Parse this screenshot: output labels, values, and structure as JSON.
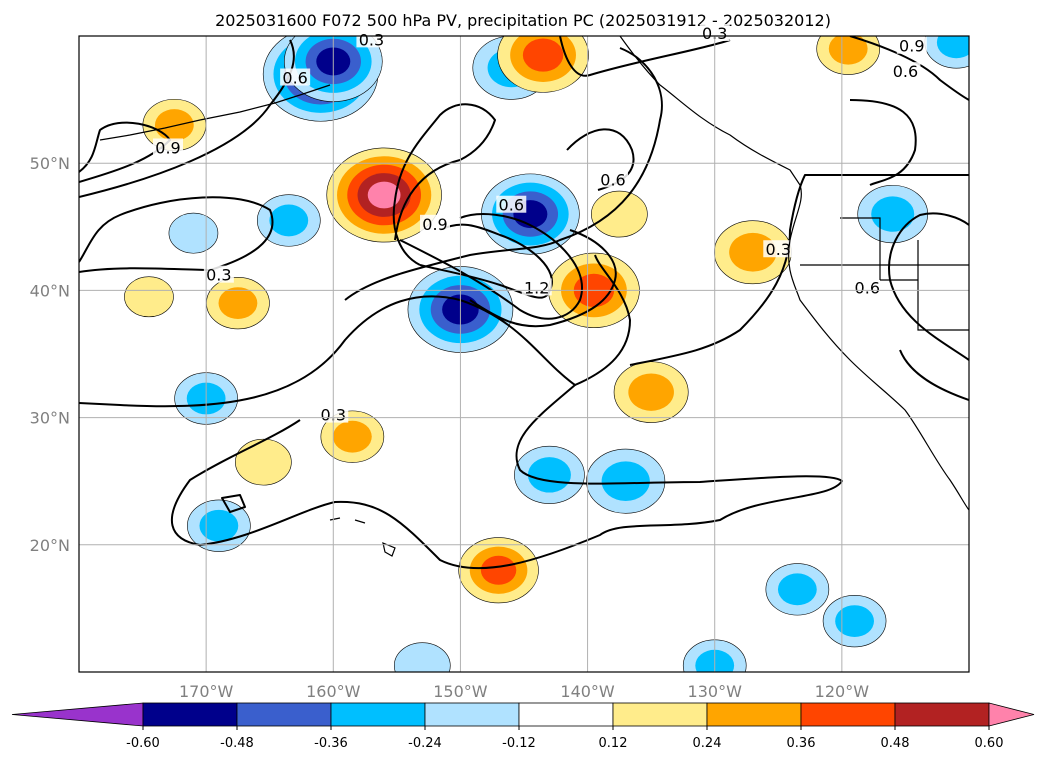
{
  "chart_data": {
    "type": "heatmap",
    "title": "2025031600 F072 500 hPa PV, precipitation PC (2025031912 - 2025032012)",
    "map": {
      "lon_range": [
        -180,
        -110
      ],
      "lat_range": [
        10,
        60
      ],
      "lat_ticks": [
        {
          "lat": 20,
          "label": "20°N"
        },
        {
          "lat": 30,
          "label": "30°N"
        },
        {
          "lat": 40,
          "label": "40°N"
        },
        {
          "lat": 50,
          "label": "50°N"
        }
      ],
      "lon_ticks": [
        {
          "lon": -170,
          "label": "170°W"
        },
        {
          "lon": -160,
          "label": "160°W"
        },
        {
          "lon": -150,
          "label": "150°W"
        },
        {
          "lon": -140,
          "label": "140°W"
        },
        {
          "lon": -130,
          "label": "130°W"
        },
        {
          "lon": -120,
          "label": "120°W"
        }
      ],
      "grid": true
    },
    "colorbar": {
      "levels": [
        "-0.60",
        "-0.48",
        "-0.36",
        "-0.24",
        "-0.12",
        "0.12",
        "0.24",
        "0.36",
        "0.48",
        "0.60"
      ],
      "colors": [
        "#9933cc",
        "#00008b",
        "#3a5fcd",
        "#00bfff",
        "#b0e2ff",
        "#ffffff",
        "#ffec8b",
        "#ffa500",
        "#ff4500",
        "#b22222",
        "#ff82ab"
      ],
      "extend": "both"
    },
    "filled_regions": [
      {
        "lon": -161,
        "lat": 57,
        "value": -0.62
      },
      {
        "lon": -160,
        "lat": 58,
        "value": -0.5
      },
      {
        "lon": -144.5,
        "lat": 46,
        "value": -0.5
      },
      {
        "lon": -150,
        "lat": 38.5,
        "value": -0.55
      },
      {
        "lon": -143,
        "lat": 25.5,
        "value": -0.3
      },
      {
        "lon": -137,
        "lat": 25,
        "value": -0.36
      },
      {
        "lon": -170,
        "lat": 31.5,
        "value": -0.25
      },
      {
        "lon": -163.5,
        "lat": 45.5,
        "value": -0.25
      },
      {
        "lon": -171,
        "lat": 44.5,
        "value": -0.15
      },
      {
        "lon": -169,
        "lat": 21.5,
        "value": -0.25
      },
      {
        "lon": -146,
        "lat": 57.5,
        "value": -0.35
      },
      {
        "lon": -116,
        "lat": 46,
        "value": -0.3
      },
      {
        "lon": -111,
        "lat": 59.5,
        "value": -0.25
      },
      {
        "lon": -123.5,
        "lat": 16.5,
        "value": -0.25
      },
      {
        "lon": -119,
        "lat": 14,
        "value": -0.25
      },
      {
        "lon": -130,
        "lat": 10.5,
        "value": -0.25
      },
      {
        "lon": -153,
        "lat": 10.5,
        "value": -0.2
      },
      {
        "lon": -156,
        "lat": 47.5,
        "value": 0.62
      },
      {
        "lon": -143.5,
        "lat": 58.5,
        "value": 0.45
      },
      {
        "lon": -139.5,
        "lat": 40,
        "value": 0.45
      },
      {
        "lon": -127,
        "lat": 43,
        "value": 0.35
      },
      {
        "lon": -135,
        "lat": 32,
        "value": 0.33
      },
      {
        "lon": -147,
        "lat": 18,
        "value": 0.37
      },
      {
        "lon": -158.5,
        "lat": 28.5,
        "value": 0.25
      },
      {
        "lon": -172.5,
        "lat": 53,
        "value": 0.25
      },
      {
        "lon": -167.5,
        "lat": 39,
        "value": 0.25
      },
      {
        "lon": -174.5,
        "lat": 39.5,
        "value": 0.15
      },
      {
        "lon": -165.5,
        "lat": 26.5,
        "value": 0.2
      },
      {
        "lon": -119.5,
        "lat": 59,
        "value": 0.25
      },
      {
        "lon": -137.5,
        "lat": 46,
        "value": 0.2
      }
    ],
    "contour_labels": [
      {
        "text": "0.3",
        "lon": -157,
        "lat": 59.5
      },
      {
        "text": "0.6",
        "lon": -163,
        "lat": 56.5
      },
      {
        "text": "0.9",
        "lon": -173,
        "lat": 51
      },
      {
        "text": "0.3",
        "lon": -169,
        "lat": 41
      },
      {
        "text": "0.9",
        "lon": -152,
        "lat": 45
      },
      {
        "text": "0.6",
        "lon": -146,
        "lat": 46.5
      },
      {
        "text": "1.2",
        "lon": -144,
        "lat": 40
      },
      {
        "text": "0.6",
        "lon": -138,
        "lat": 48.5
      },
      {
        "text": "0.3",
        "lon": -130,
        "lat": 60
      },
      {
        "text": "0.9",
        "lon": -114.5,
        "lat": 59
      },
      {
        "text": "0.6",
        "lon": -115,
        "lat": 57
      },
      {
        "text": "0.3",
        "lon": -125,
        "lat": 43
      },
      {
        "text": "0.6",
        "lon": -118,
        "lat": 40
      },
      {
        "text": "0.3",
        "lon": -160,
        "lat": 30
      }
    ]
  }
}
